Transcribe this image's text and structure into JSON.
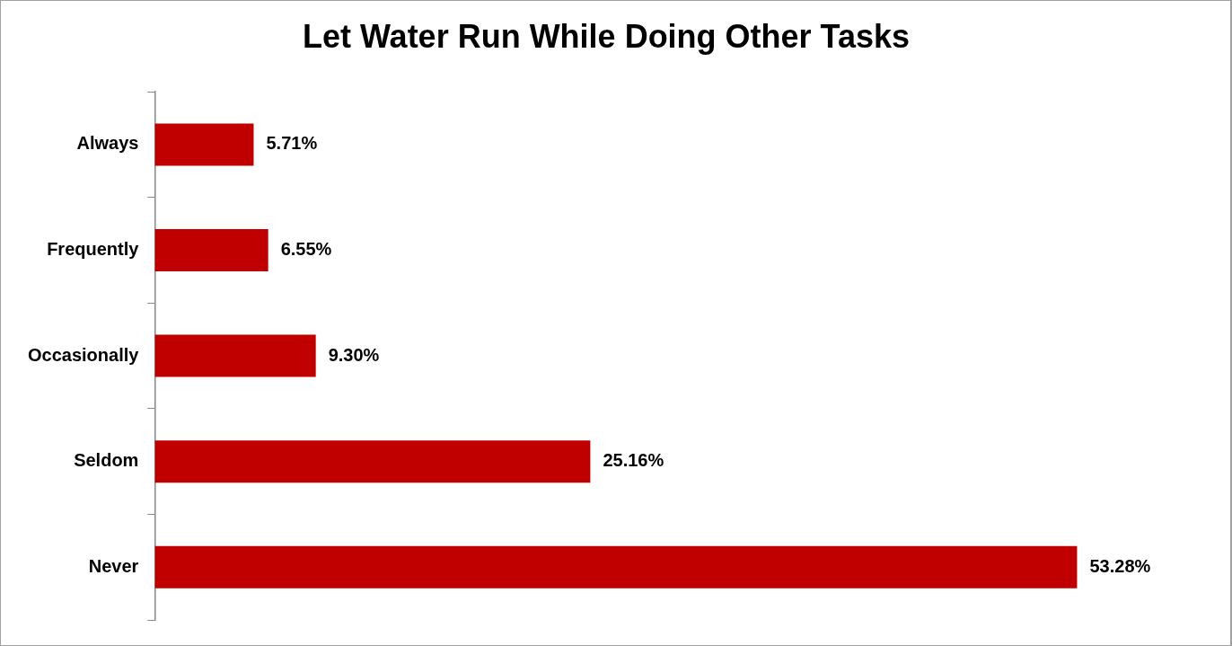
{
  "chart_data": {
    "type": "bar",
    "orientation": "horizontal",
    "title": "Let Water Run While Doing Other Tasks",
    "categories": [
      "Always",
      "Frequently",
      "Occasionally",
      "Seldom",
      "Never"
    ],
    "values": [
      5.71,
      6.55,
      9.3,
      25.16,
      53.28
    ],
    "value_labels": [
      "5.71%",
      "6.55%",
      "9.30%",
      "25.16%",
      "53.28%"
    ],
    "color": "#c00000",
    "tick_labels": "y",
    "grid": false,
    "legend": false
  }
}
